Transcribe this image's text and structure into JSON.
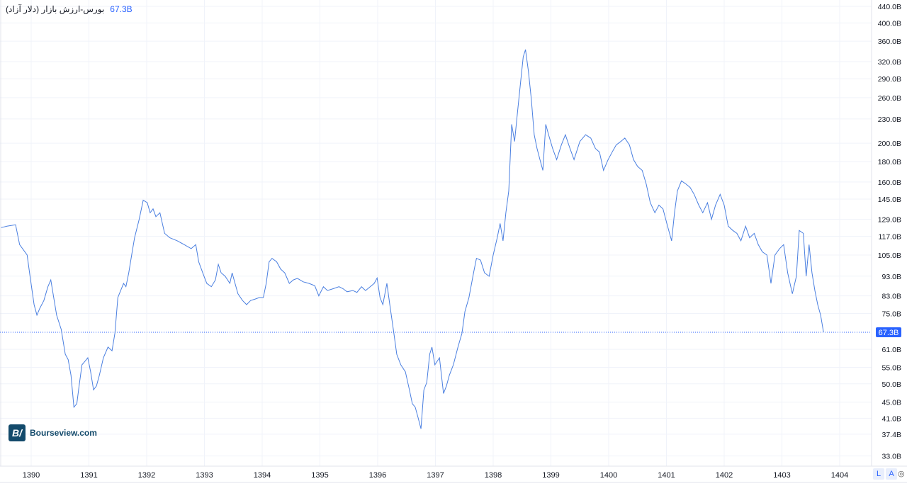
{
  "legend": {
    "name": "بورس-ارزش بازار (دلار آزاد)",
    "last_value": "67.3B"
  },
  "logo": {
    "text": "Bourseview.com",
    "mark": "BV"
  },
  "controls": {
    "log_label": "L",
    "auto_label": "A",
    "settings_icon": "settings-icon"
  },
  "colors": {
    "line": "#4a7fe0",
    "badge": "#2962ff",
    "grid": "#f0f3fa"
  },
  "chart_data": {
    "type": "line",
    "title": "",
    "xlabel": "",
    "ylabel": "",
    "y_scale": "log",
    "ylim": [
      32,
      460
    ],
    "xlim": [
      1389.46,
      1404.5
    ],
    "grid": true,
    "legend_placement": "top-left",
    "x_ticks": [
      "1390",
      "1391",
      "1392",
      "1393",
      "1394",
      "1395",
      "1396",
      "1397",
      "1398",
      "1399",
      "1400",
      "1401",
      "1402",
      "1403",
      "1404"
    ],
    "y_ticks": [
      {
        "value": 440,
        "label": "440.0B"
      },
      {
        "value": 400,
        "label": "400.0B"
      },
      {
        "value": 360,
        "label": "360.0B"
      },
      {
        "value": 320,
        "label": "320.0B"
      },
      {
        "value": 290,
        "label": "290.0B"
      },
      {
        "value": 260,
        "label": "260.0B"
      },
      {
        "value": 230,
        "label": "230.0B"
      },
      {
        "value": 200,
        "label": "200.0B"
      },
      {
        "value": 180,
        "label": "180.0B"
      },
      {
        "value": 160,
        "label": "160.0B"
      },
      {
        "value": 145,
        "label": "145.0B"
      },
      {
        "value": 129,
        "label": "129.0B"
      },
      {
        "value": 117,
        "label": "117.0B"
      },
      {
        "value": 105,
        "label": "105.0B"
      },
      {
        "value": 93,
        "label": "93.0B"
      },
      {
        "value": 83,
        "label": "83.0B"
      },
      {
        "value": 75,
        "label": "75.0B"
      },
      {
        "value": 61,
        "label": "61.0B"
      },
      {
        "value": 55,
        "label": "55.0B"
      },
      {
        "value": 50,
        "label": "50.0B"
      },
      {
        "value": 45,
        "label": "45.0B"
      },
      {
        "value": 41,
        "label": "41.0B"
      },
      {
        "value": 37.4,
        "label": "37.4B"
      },
      {
        "value": 33,
        "label": "33.0B"
      }
    ],
    "last_value": 67.3,
    "series": [
      {
        "points": [
          [
            1389.48,
            123
          ],
          [
            1389.58,
            124
          ],
          [
            1389.73,
            125
          ],
          [
            1389.8,
            111.5
          ],
          [
            1389.93,
            105
          ],
          [
            1389.98,
            92.9
          ],
          [
            1390.05,
            78.9
          ],
          [
            1390.1,
            74.3
          ],
          [
            1390.15,
            77.3
          ],
          [
            1390.22,
            80.8
          ],
          [
            1390.29,
            87.5
          ],
          [
            1390.34,
            91
          ],
          [
            1390.39,
            82.2
          ],
          [
            1390.44,
            74.3
          ],
          [
            1390.52,
            68.4
          ],
          [
            1390.59,
            59.3
          ],
          [
            1390.64,
            57.5
          ],
          [
            1390.69,
            52.5
          ],
          [
            1390.74,
            43.7
          ],
          [
            1390.79,
            44.6
          ],
          [
            1390.83,
            49.4
          ],
          [
            1390.88,
            55.8
          ],
          [
            1390.93,
            56.9
          ],
          [
            1390.98,
            58.1
          ],
          [
            1391.03,
            53.6
          ],
          [
            1391.08,
            48.3
          ],
          [
            1391.13,
            49.4
          ],
          [
            1391.18,
            52.5
          ],
          [
            1391.25,
            58.1
          ],
          [
            1391.33,
            61.8
          ],
          [
            1391.4,
            60.5
          ],
          [
            1391.45,
            67
          ],
          [
            1391.5,
            82.2
          ],
          [
            1391.55,
            85.6
          ],
          [
            1391.6,
            89.2
          ],
          [
            1391.64,
            87.5
          ],
          [
            1391.69,
            94.8
          ],
          [
            1391.74,
            105
          ],
          [
            1391.79,
            116
          ],
          [
            1391.87,
            129
          ],
          [
            1391.94,
            144
          ],
          [
            1392.01,
            142
          ],
          [
            1392.06,
            134
          ],
          [
            1392.11,
            137
          ],
          [
            1392.16,
            131
          ],
          [
            1392.23,
            134
          ],
          [
            1392.31,
            119
          ],
          [
            1392.4,
            116
          ],
          [
            1392.53,
            114
          ],
          [
            1392.65,
            111.5
          ],
          [
            1392.77,
            109
          ],
          [
            1392.85,
            111.5
          ],
          [
            1392.9,
            101
          ],
          [
            1392.97,
            94.8
          ],
          [
            1393.04,
            89.2
          ],
          [
            1393.12,
            87.5
          ],
          [
            1393.19,
            91
          ],
          [
            1393.24,
            99.5
          ],
          [
            1393.29,
            94.8
          ],
          [
            1393.36,
            92.9
          ],
          [
            1393.44,
            89.2
          ],
          [
            1393.48,
            94.8
          ],
          [
            1393.53,
            89.2
          ],
          [
            1393.58,
            84
          ],
          [
            1393.66,
            80.8
          ],
          [
            1393.73,
            78.9
          ],
          [
            1393.8,
            80.8
          ],
          [
            1393.88,
            81.5
          ],
          [
            1393.95,
            82.2
          ],
          [
            1394.02,
            82.2
          ],
          [
            1394.07,
            89.2
          ],
          [
            1394.12,
            101
          ],
          [
            1394.17,
            103
          ],
          [
            1394.25,
            101
          ],
          [
            1394.32,
            96.8
          ],
          [
            1394.39,
            94.8
          ],
          [
            1394.47,
            89.2
          ],
          [
            1394.54,
            91
          ],
          [
            1394.61,
            91.8
          ],
          [
            1394.71,
            90
          ],
          [
            1394.81,
            89.2
          ],
          [
            1394.91,
            88
          ],
          [
            1394.98,
            83
          ],
          [
            1395.06,
            87.5
          ],
          [
            1395.13,
            85.6
          ],
          [
            1395.23,
            86.5
          ],
          [
            1395.33,
            87.5
          ],
          [
            1395.4,
            86.5
          ],
          [
            1395.47,
            85
          ],
          [
            1395.57,
            85.6
          ],
          [
            1395.64,
            84.7
          ],
          [
            1395.72,
            87.5
          ],
          [
            1395.79,
            85.6
          ],
          [
            1395.87,
            87.5
          ],
          [
            1395.94,
            89.2
          ],
          [
            1395.99,
            92
          ],
          [
            1396.04,
            82.2
          ],
          [
            1396.09,
            78.9
          ],
          [
            1396.16,
            89.2
          ],
          [
            1396.21,
            78.9
          ],
          [
            1396.28,
            67
          ],
          [
            1396.33,
            59.3
          ],
          [
            1396.4,
            55.8
          ],
          [
            1396.48,
            53.6
          ],
          [
            1396.55,
            48.3
          ],
          [
            1396.6,
            44.6
          ],
          [
            1396.65,
            43.7
          ],
          [
            1396.7,
            41.1
          ],
          [
            1396.75,
            38.6
          ],
          [
            1396.8,
            48.3
          ],
          [
            1396.85,
            50.4
          ],
          [
            1396.9,
            59.3
          ],
          [
            1396.94,
            61.8
          ],
          [
            1396.99,
            55.8
          ],
          [
            1397.07,
            58.1
          ],
          [
            1397.14,
            47.3
          ],
          [
            1397.19,
            49.4
          ],
          [
            1397.24,
            52.5
          ],
          [
            1397.31,
            55.8
          ],
          [
            1397.39,
            61.8
          ],
          [
            1397.46,
            67
          ],
          [
            1397.51,
            75.8
          ],
          [
            1397.58,
            82.2
          ],
          [
            1397.66,
            94.8
          ],
          [
            1397.71,
            103
          ],
          [
            1397.78,
            102
          ],
          [
            1397.85,
            94.8
          ],
          [
            1397.93,
            92.9
          ],
          [
            1398.0,
            105
          ],
          [
            1398.07,
            116
          ],
          [
            1398.12,
            126
          ],
          [
            1398.17,
            114
          ],
          [
            1398.22,
            134
          ],
          [
            1398.27,
            152
          ],
          [
            1398.32,
            223
          ],
          [
            1398.37,
            202
          ],
          [
            1398.42,
            238
          ],
          [
            1398.47,
            280
          ],
          [
            1398.52,
            329
          ],
          [
            1398.56,
            343
          ],
          [
            1398.61,
            303
          ],
          [
            1398.66,
            258
          ],
          [
            1398.71,
            210
          ],
          [
            1398.76,
            194
          ],
          [
            1398.81,
            182
          ],
          [
            1398.86,
            171
          ],
          [
            1398.91,
            223
          ],
          [
            1398.96,
            210
          ],
          [
            1399.03,
            194
          ],
          [
            1399.1,
            182
          ],
          [
            1399.18,
            198
          ],
          [
            1399.25,
            210
          ],
          [
            1399.33,
            194
          ],
          [
            1399.4,
            182
          ],
          [
            1399.5,
            202
          ],
          [
            1399.6,
            210
          ],
          [
            1399.69,
            206
          ],
          [
            1399.77,
            194
          ],
          [
            1399.84,
            190
          ],
          [
            1399.91,
            171
          ],
          [
            1399.99,
            182
          ],
          [
            1400.06,
            190
          ],
          [
            1400.13,
            198
          ],
          [
            1400.21,
            202
          ],
          [
            1400.28,
            206
          ],
          [
            1400.36,
            198
          ],
          [
            1400.43,
            182
          ],
          [
            1400.5,
            175
          ],
          [
            1400.58,
            171
          ],
          [
            1400.65,
            158
          ],
          [
            1400.72,
            142
          ],
          [
            1400.8,
            134
          ],
          [
            1400.87,
            140
          ],
          [
            1400.94,
            137
          ],
          [
            1401.02,
            124
          ],
          [
            1401.09,
            114
          ],
          [
            1401.14,
            134
          ],
          [
            1401.19,
            152
          ],
          [
            1401.26,
            161
          ],
          [
            1401.34,
            158
          ],
          [
            1401.41,
            155
          ],
          [
            1401.48,
            149
          ],
          [
            1401.56,
            140
          ],
          [
            1401.63,
            134
          ],
          [
            1401.71,
            142
          ],
          [
            1401.78,
            129
          ],
          [
            1401.85,
            140
          ],
          [
            1401.93,
            149
          ],
          [
            1402.0,
            140
          ],
          [
            1402.07,
            124
          ],
          [
            1402.15,
            121
          ],
          [
            1402.22,
            119
          ],
          [
            1402.29,
            114
          ],
          [
            1402.37,
            124
          ],
          [
            1402.44,
            116
          ],
          [
            1402.52,
            119
          ],
          [
            1402.59,
            111.5
          ],
          [
            1402.66,
            107
          ],
          [
            1402.74,
            105
          ],
          [
            1402.81,
            89.2
          ],
          [
            1402.88,
            105
          ],
          [
            1402.96,
            109
          ],
          [
            1403.03,
            111.5
          ],
          [
            1403.1,
            94.8
          ],
          [
            1403.18,
            84
          ],
          [
            1403.25,
            92.9
          ],
          [
            1403.3,
            121
          ],
          [
            1403.37,
            119
          ],
          [
            1403.42,
            92.9
          ],
          [
            1403.47,
            111.5
          ],
          [
            1403.52,
            94.8
          ],
          [
            1403.57,
            85.6
          ],
          [
            1403.62,
            78.9
          ],
          [
            1403.67,
            74.3
          ],
          [
            1403.72,
            67.3
          ]
        ]
      }
    ]
  }
}
